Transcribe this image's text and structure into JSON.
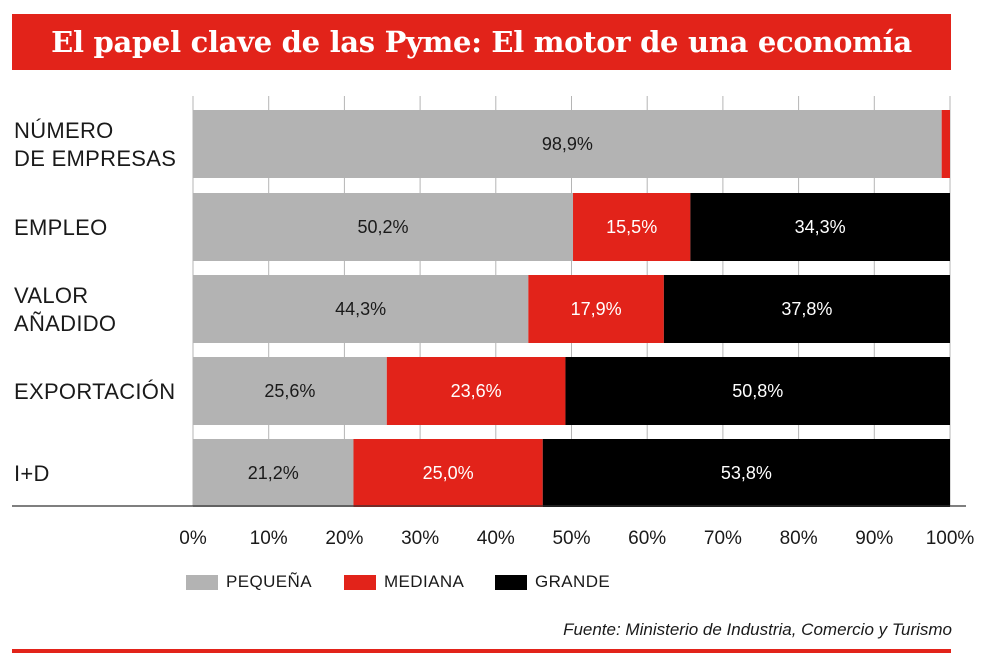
{
  "title": "El papel clave de las Pyme: El motor de una economía",
  "colors": {
    "pequena": "#b3b3b3",
    "mediana": "#e2231a",
    "grande": "#000000",
    "accent": "#e2231a"
  },
  "chart_data": {
    "type": "bar",
    "orientation": "horizontal",
    "stacked": true,
    "categories": [
      [
        "NÚMERO",
        "DE EMPRESAS"
      ],
      [
        "EMPLEO"
      ],
      [
        "VALOR",
        "AÑADIDO"
      ],
      [
        "EXPORTACIÓN"
      ],
      [
        "I+D"
      ]
    ],
    "series": [
      {
        "name": "PEQUEÑA",
        "values": [
          98.9,
          50.2,
          44.3,
          25.6,
          21.2
        ],
        "labels": [
          "98,9%",
          "50,2%",
          "44,3%",
          "25,6%",
          "21,2%"
        ]
      },
      {
        "name": "MEDIANA",
        "values": [
          1.1,
          15.5,
          17.9,
          23.6,
          25.0
        ],
        "labels": [
          "",
          "15,5%",
          "17,9%",
          "23,6%",
          "25,0%"
        ]
      },
      {
        "name": "GRANDE",
        "values": [
          0,
          34.3,
          37.8,
          50.8,
          53.8
        ],
        "labels": [
          "",
          "34,3%",
          "37,8%",
          "50,8%",
          "53,8%"
        ]
      }
    ],
    "xlim": [
      0,
      100
    ],
    "xticks": [
      "0%",
      "10%",
      "20%",
      "30%",
      "40%",
      "50%",
      "60%",
      "70%",
      "80%",
      "90%",
      "100%"
    ],
    "grid": true,
    "legend_position": "bottom"
  },
  "legend": [
    {
      "label": "PEQUEÑA",
      "color": "#b3b3b3"
    },
    {
      "label": "MEDIANA",
      "color": "#e2231a"
    },
    {
      "label": "GRANDE",
      "color": "#000000"
    }
  ],
  "source": "Fuente: Ministerio de Industria, Comercio y Turismo"
}
